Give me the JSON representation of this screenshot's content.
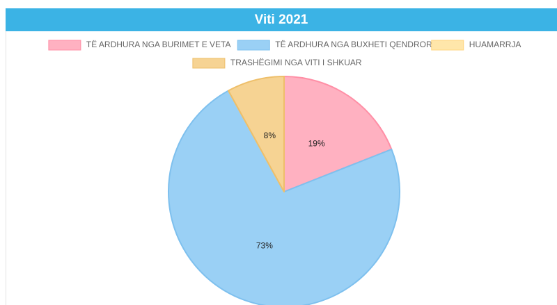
{
  "chart_data": {
    "type": "pie",
    "title": "Viti 2021",
    "categories": [
      "TË ARDHURA NGA BURIMET E VETA",
      "TË ARDHURA NGA BUXHETI QENDROR",
      "HUAMARRJA",
      "TRASHËGIMI NGA VITI I SHKUAR"
    ],
    "values": [
      19,
      73,
      0,
      8
    ],
    "value_labels": [
      "19%",
      "73%",
      null,
      "8%"
    ],
    "colors": [
      "#ffb1c1",
      "#9ad0f5",
      "#ffe6aa",
      "#f6d393"
    ],
    "border_colors": [
      "#ff8fa6",
      "#7ec0ee",
      "#ffd680",
      "#eebf6a"
    ],
    "legend": "top"
  }
}
